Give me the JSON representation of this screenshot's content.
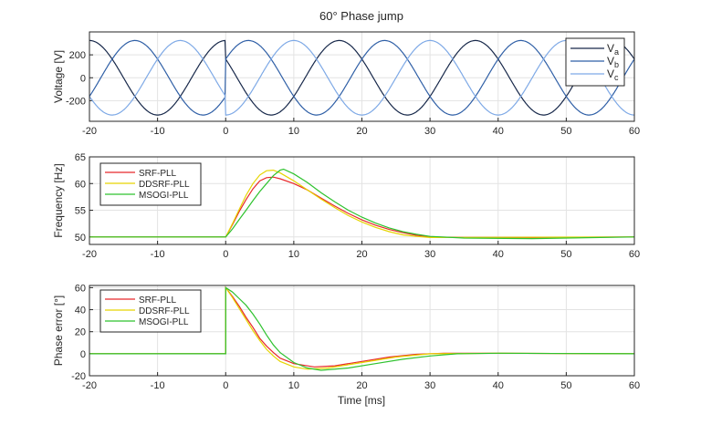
{
  "chart_data": [
    {
      "type": "line",
      "title": "60° Phase jump",
      "xlabel": "",
      "ylabel": "Voltage [V]",
      "xlim": [
        -20,
        60
      ],
      "ylim": [
        -380,
        400
      ],
      "xticks": [
        -20,
        -10,
        0,
        10,
        20,
        30,
        40,
        50,
        60
      ],
      "yticks": [
        -200,
        0,
        200
      ],
      "grid": true,
      "legend_placement": "top-right",
      "signal": {
        "amplitude": 325,
        "frequency_hz": 50,
        "phase_jump_deg": 60,
        "jump_time_ms": 0
      },
      "series": [
        {
          "name": "V",
          "sub": "a",
          "phase_deg": 0,
          "color": "#17284a"
        },
        {
          "name": "V",
          "sub": "b",
          "phase_deg": -120,
          "color": "#2f5fa6"
        },
        {
          "name": "V",
          "sub": "c",
          "phase_deg": 120,
          "color": "#7ea9e6"
        }
      ]
    },
    {
      "type": "line",
      "title": "",
      "xlabel": "",
      "ylabel": "Frequency [Hz]",
      "xlim": [
        -20,
        60
      ],
      "ylim": [
        48.6,
        65
      ],
      "xticks": [
        -20,
        -10,
        0,
        10,
        20,
        30,
        40,
        50,
        60
      ],
      "yticks": [
        50,
        55,
        60,
        65
      ],
      "grid": true,
      "legend_placement": "top-left",
      "series": [
        {
          "name": "SRF-PLL",
          "color": "#e8282a",
          "x": [
            -20,
            0,
            1,
            2,
            3,
            4,
            5,
            6,
            7,
            8,
            10,
            12,
            14,
            16,
            18,
            20,
            22,
            24,
            26,
            28,
            30,
            35,
            45,
            60
          ],
          "y": [
            50,
            50,
            52.3,
            54.8,
            57,
            59,
            60.5,
            61.1,
            61.2,
            60.9,
            60,
            58.8,
            57.3,
            55.8,
            54.4,
            53.2,
            52.2,
            51.4,
            50.8,
            50.3,
            50,
            49.9,
            49.9,
            50
          ]
        },
        {
          "name": "DDSRF-PLL",
          "color": "#e6d400",
          "x": [
            -20,
            0,
            1,
            2,
            3,
            4,
            5,
            6,
            7,
            8,
            10,
            12,
            14,
            16,
            18,
            20,
            22,
            24,
            26,
            28,
            30,
            60
          ],
          "y": [
            50,
            50,
            52.5,
            55.2,
            57.8,
            60,
            61.6,
            62.4,
            62.5,
            62,
            60.5,
            58.8,
            57.1,
            55.5,
            54,
            52.8,
            51.8,
            51,
            50.4,
            50.1,
            49.9,
            50
          ]
        },
        {
          "name": "MSOGI-PLL",
          "color": "#2ec22e",
          "x": [
            -20,
            0,
            1,
            2,
            3,
            4,
            5,
            6,
            7,
            8,
            8.5,
            10,
            12,
            14,
            16,
            18,
            20,
            22,
            24,
            26,
            28,
            30,
            35,
            45,
            50,
            60
          ],
          "y": [
            50,
            50,
            51.5,
            53.3,
            55,
            56.8,
            58.5,
            60,
            61.5,
            62.5,
            62.7,
            61.8,
            60.2,
            58.3,
            56.6,
            55,
            53.7,
            52.6,
            51.7,
            51,
            50.5,
            50.1,
            49.8,
            49.7,
            49.8,
            50
          ]
        }
      ]
    },
    {
      "type": "line",
      "title": "",
      "xlabel": "Time [ms]",
      "ylabel": "Phase error [°]",
      "xlim": [
        -20,
        60
      ],
      "ylim": [
        -20,
        62
      ],
      "xticks": [
        -20,
        -10,
        0,
        10,
        20,
        30,
        40,
        50,
        60
      ],
      "yticks": [
        -20,
        0,
        20,
        40,
        60
      ],
      "grid": true,
      "legend_placement": "top-left",
      "series": [
        {
          "name": "SRF-PLL",
          "color": "#e8282a",
          "x": [
            -20,
            0,
            0,
            1,
            2,
            3,
            4,
            5,
            6,
            7,
            8,
            10,
            13,
            16,
            20,
            24,
            28,
            32,
            40,
            60
          ],
          "y": [
            0,
            0,
            60,
            52,
            43,
            33,
            24,
            14,
            7,
            1,
            -4,
            -9,
            -12,
            -11,
            -7,
            -3,
            -0.5,
            0.5,
            0.5,
            0
          ]
        },
        {
          "name": "DDSRF-PLL",
          "color": "#e6d400",
          "x": [
            -20,
            0,
            0,
            1,
            2,
            3,
            4,
            5,
            6,
            7,
            8,
            10,
            12,
            15,
            20,
            25,
            30,
            40,
            60
          ],
          "y": [
            0,
            0,
            60,
            51,
            41,
            31,
            21,
            12,
            4,
            -2,
            -7,
            -12,
            -14,
            -13,
            -8,
            -3,
            0,
            0.5,
            0
          ]
        },
        {
          "name": "MSOGI-PLL",
          "color": "#2ec22e",
          "x": [
            -20,
            0,
            0,
            1,
            2,
            3,
            4,
            5,
            6,
            7,
            8,
            10,
            12,
            14,
            18,
            22,
            26,
            30,
            34,
            40,
            60
          ],
          "y": [
            0,
            0,
            60,
            56,
            50,
            44,
            36,
            27,
            17,
            8,
            1,
            -8,
            -13,
            -15,
            -13,
            -9,
            -5,
            -2,
            0,
            0.5,
            0
          ]
        }
      ]
    }
  ]
}
